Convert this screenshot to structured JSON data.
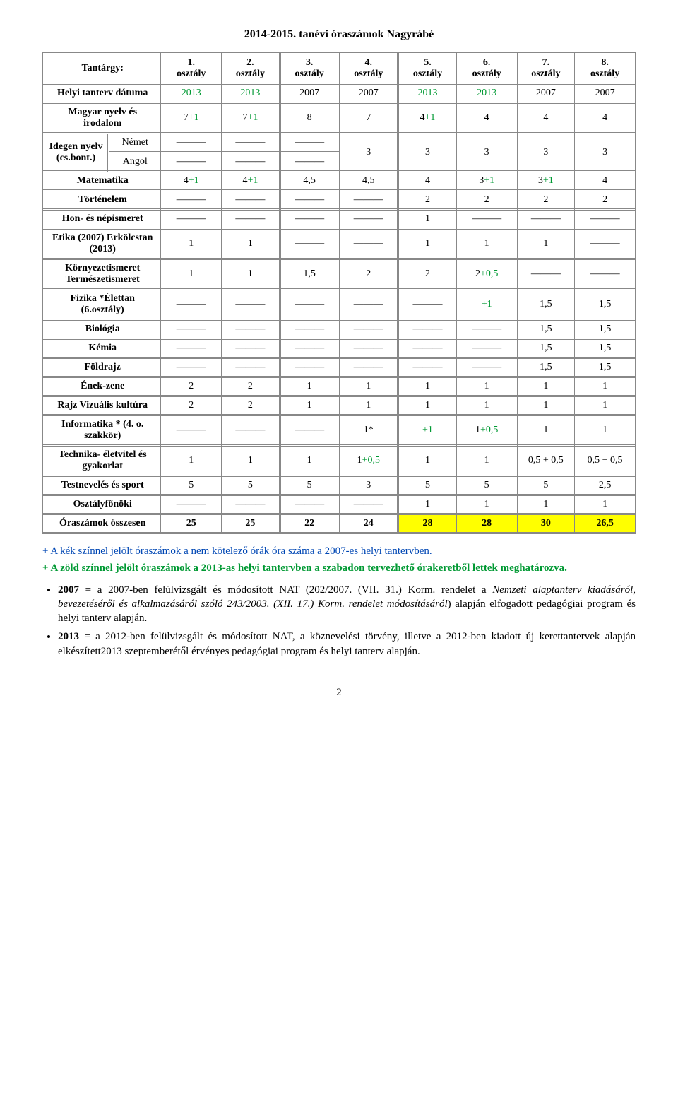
{
  "title": "2014-2015. tanévi óraszámok Nagyrábé",
  "page_number": "2",
  "col_subject_header": "Tantárgy:",
  "grade_headers": [
    "1. osztály",
    "2. osztály",
    "3. osztály",
    "4. osztály",
    "5. osztály",
    "6. osztály",
    "7. osztály",
    "8. osztály"
  ],
  "row_tanterv_label": "Helyi tanterv dátuma",
  "row_tanterv": [
    {
      "v": "2013",
      "color": "green"
    },
    {
      "v": "2013",
      "color": "green"
    },
    {
      "v": "2007",
      "color": ""
    },
    {
      "v": "2007",
      "color": ""
    },
    {
      "v": "2013",
      "color": "green"
    },
    {
      "v": "2013",
      "color": "green"
    },
    {
      "v": "2007",
      "color": ""
    },
    {
      "v": "2007",
      "color": ""
    }
  ],
  "row_magyar_label": "Magyar nyelv és irodalom",
  "row_magyar": [
    {
      "v": "7",
      "plus": "+1"
    },
    {
      "v": "7",
      "plus": "+1"
    },
    {
      "v": "8"
    },
    {
      "v": "7"
    },
    {
      "v": "4",
      "plus": "+1"
    },
    {
      "v": "4"
    },
    {
      "v": "4"
    },
    {
      "v": "4"
    }
  ],
  "row_idegen_label": "Idegen nyelv (cs.bont.)",
  "row_idegen_nemet": "Német",
  "row_idegen_angol": "Angol",
  "row_idegen_vals": [
    "3",
    "3",
    "3",
    "3",
    "3"
  ],
  "row_matematika_label": "Matematika",
  "row_matematika": [
    {
      "v": "4",
      "plus": "+1"
    },
    {
      "v": "4",
      "plus": "+1"
    },
    {
      "v": "4,5"
    },
    {
      "v": "4,5"
    },
    {
      "v": "4"
    },
    {
      "v": "3",
      "plus": "+1"
    },
    {
      "v": "3",
      "plus": "+1"
    },
    {
      "v": "4"
    }
  ],
  "row_tortenelem_label": "Történelem",
  "row_tortenelem": [
    "—",
    "—",
    "—",
    "—",
    "2",
    "2",
    "2",
    "2"
  ],
  "row_hon_label": "Hon- és népismeret",
  "row_hon": [
    "—",
    "—",
    "—",
    "—",
    "1",
    "—",
    "—",
    "—"
  ],
  "row_etika_label": "Etika (2007) Erkölcstan (2013)",
  "row_etika": [
    "1",
    "1",
    "—",
    "—",
    "1",
    "1",
    "1",
    "—"
  ],
  "row_korny_label": "Környezetismeret Természetismeret",
  "row_korny": [
    {
      "v": "1"
    },
    {
      "v": "1"
    },
    {
      "v": "1,5"
    },
    {
      "v": "2"
    },
    {
      "v": "2"
    },
    {
      "v": "2",
      "plus": "+0,5"
    },
    {
      "v": "—"
    },
    {
      "v": "—"
    }
  ],
  "row_fizika_label": "Fizika *Élettan (6.osztály)",
  "row_fizika": [
    {
      "v": "—"
    },
    {
      "v": "—"
    },
    {
      "v": "—"
    },
    {
      "v": "—"
    },
    {
      "v": "—"
    },
    {
      "v": "",
      "plus": "+1"
    },
    {
      "v": "1,5"
    },
    {
      "v": "1,5"
    }
  ],
  "row_biologia_label": "Biológia",
  "row_biologia": [
    "—",
    "—",
    "—",
    "—",
    "—",
    "—",
    "1,5",
    "1,5"
  ],
  "row_kemia_label": "Kémia",
  "row_kemia": [
    "—",
    "—",
    "—",
    "—",
    "—",
    "—",
    "1,5",
    "1,5"
  ],
  "row_foldrajz_label": "Földrajz",
  "row_foldrajz": [
    "—",
    "—",
    "—",
    "—",
    "—",
    "—",
    "1,5",
    "1,5"
  ],
  "row_enek_label": "Ének-zene",
  "row_enek": [
    "2",
    "2",
    "1",
    "1",
    "1",
    "1",
    "1",
    "1"
  ],
  "row_rajz_label": "Rajz Vizuális kultúra",
  "row_rajz": [
    "2",
    "2",
    "1",
    "1",
    "1",
    "1",
    "1",
    "1"
  ],
  "row_info_label": "Informatika * (4. o. szakkör)",
  "row_info": [
    {
      "v": "—"
    },
    {
      "v": "—"
    },
    {
      "v": "—"
    },
    {
      "v": "1*"
    },
    {
      "v": "",
      "plus": "+1"
    },
    {
      "v": "1",
      "plus": "+0,5"
    },
    {
      "v": "1"
    },
    {
      "v": "1"
    }
  ],
  "row_technika_label": "Technika- életvitel és gyakorlat",
  "row_technika": [
    {
      "v": "1"
    },
    {
      "v": "1"
    },
    {
      "v": "1"
    },
    {
      "v": "1",
      "plus": "+0,5"
    },
    {
      "v": "1"
    },
    {
      "v": "1"
    },
    {
      "v": "0,5 + 0,5"
    },
    {
      "v": "0,5 + 0,5"
    }
  ],
  "row_testnev_label": "Testnevelés és sport",
  "row_testnev": [
    "5",
    "5",
    "5",
    "3",
    "5",
    "5",
    "5",
    "2,5"
  ],
  "row_of_label": "Osztályfőnöki",
  "row_of": [
    "—",
    "—",
    "—",
    "—",
    "1",
    "1",
    "1",
    "1"
  ],
  "row_total_label": "Óraszámok összesen",
  "row_total": [
    "25",
    "25",
    "22",
    "24",
    "28",
    "28",
    "30",
    "26,5"
  ],
  "note_blue_prefix": "+  ",
  "note_blue": "A kék színnel jelölt óraszámok a nem kötelező órák óra száma a 2007-es helyi tantervben",
  "note_green_prefix": "+ ",
  "note_green": "A zöld színnel jelölt óraszámok a 2013-as helyi tantervben a szabadon tervezhető órakeretből lettek meghatározva.",
  "bullet_2007_bold": "2007",
  "bullet_2007": " = a 2007-ben felülvizsgált és módosított NAT (202/2007. (VII. 31.) Korm. rendelet a ",
  "bullet_2007_italic": "Nemzeti alaptanterv kiadásáról, bevezetéséről és alkalmazásáról szóló 243/2003. (XII. 17.) Korm. rendelet módosításáról",
  "bullet_2007_tail": ") alapján elfogadott pedagógiai program és helyi tanterv alapján.",
  "bullet_2013_bold": "2013",
  "bullet_2013": " = a 2012-ben felülvizsgált és módosított NAT, a köznevelési törvény, illetve a 2012-ben kiadott új kerettantervek alapján elkészített2013 szeptemberétől érvényes pedagógiai program és helyi tanterv alapján.",
  "dash_glyph": "———"
}
